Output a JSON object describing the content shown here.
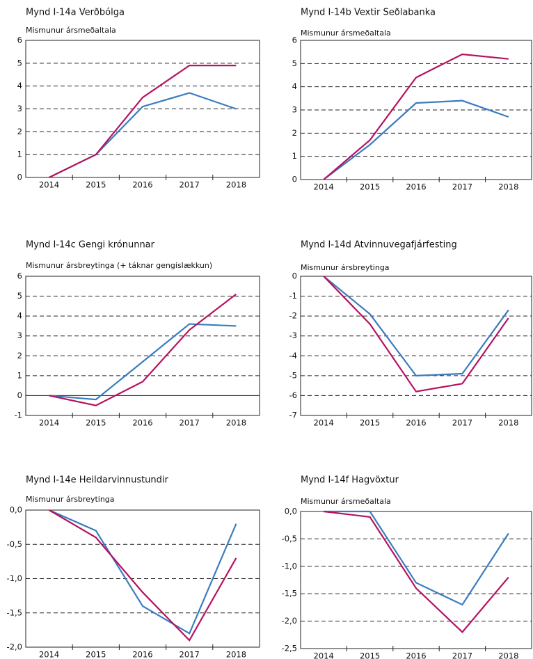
{
  "chart_data": [
    {
      "type": "line",
      "title": "Mynd I-14a Verðbólga",
      "subtitle": "Mismunur ársmeðaltala",
      "categories": [
        "2014",
        "2015",
        "2016",
        "2017",
        "2018"
      ],
      "series": [
        {
          "color": "#3a7cc0",
          "values": [
            0,
            1,
            3.1,
            3.7,
            3.0
          ]
        },
        {
          "color": "#b5125f",
          "values": [
            0,
            1,
            3.5,
            4.9,
            4.9
          ]
        }
      ],
      "ylim": [
        0,
        6
      ],
      "yticks": [
        0,
        1,
        2,
        3,
        4,
        5,
        6
      ],
      "grid": true
    },
    {
      "type": "line",
      "title": "Mynd I-14b Vextir Seðlabanka",
      "subtitle": "Mismunur ársmeðaltala",
      "categories": [
        "2014",
        "2015",
        "2016",
        "2017",
        "2018"
      ],
      "series": [
        {
          "color": "#3a7cc0",
          "values": [
            0,
            1.5,
            3.3,
            3.4,
            2.7
          ]
        },
        {
          "color": "#b5125f",
          "values": [
            0,
            1.7,
            4.4,
            5.4,
            5.2
          ]
        }
      ],
      "ylim": [
        0,
        6
      ],
      "yticks": [
        0,
        1,
        2,
        3,
        4,
        5,
        6
      ],
      "grid": true
    },
    {
      "type": "line",
      "title": "Mynd I-14c Gengi krónunnar",
      "subtitle": "Mismunur ársbreytinga (+ táknar gengislækkun)",
      "categories": [
        "2014",
        "2015",
        "2016",
        "2017",
        "2018"
      ],
      "series": [
        {
          "color": "#3a7cc0",
          "values": [
            0,
            -0.2,
            1.7,
            3.6,
            3.5
          ]
        },
        {
          "color": "#b5125f",
          "values": [
            0,
            -0.5,
            0.7,
            3.3,
            5.1
          ]
        }
      ],
      "ylim": [
        -1,
        6
      ],
      "yticks": [
        -1,
        0,
        1,
        2,
        3,
        4,
        5,
        6
      ],
      "grid": true
    },
    {
      "type": "line",
      "title": "Mynd I-14d Atvinnuvegafjárfesting",
      "subtitle": "Mismunur ársbreytinga",
      "categories": [
        "2014",
        "2015",
        "2016",
        "2017",
        "2018"
      ],
      "series": [
        {
          "color": "#3a7cc0",
          "values": [
            0,
            -1.9,
            -5.0,
            -4.9,
            -1.7
          ]
        },
        {
          "color": "#b5125f",
          "values": [
            0,
            -2.4,
            -5.8,
            -5.4,
            -2.1
          ]
        }
      ],
      "ylim": [
        -7,
        0
      ],
      "yticks": [
        -7,
        -6,
        -5,
        -4,
        -3,
        -2,
        -1,
        0
      ],
      "grid": true
    },
    {
      "type": "line",
      "title": "Mynd I-14e Heildarvinnustundir",
      "subtitle": "Mismunur ársbreytinga",
      "categories": [
        "2014",
        "2015",
        "2016",
        "2017",
        "2018"
      ],
      "series": [
        {
          "color": "#3a7cc0",
          "values": [
            0,
            -0.3,
            -1.4,
            -1.8,
            -0.2
          ]
        },
        {
          "color": "#b5125f",
          "values": [
            0,
            -0.4,
            -1.2,
            -1.9,
            -0.7
          ]
        }
      ],
      "ylim": [
        -2,
        0
      ],
      "yticks": [
        {
          "value": -2,
          "label": "-2,0"
        },
        {
          "value": -1.5,
          "label": "-1,5"
        },
        {
          "value": -1,
          "label": "-1,0"
        },
        {
          "value": -0.5,
          "label": "-0,5"
        },
        {
          "value": 0,
          "label": "0,0"
        }
      ],
      "grid": true
    },
    {
      "type": "line",
      "title": "Mynd I-14f Hagvöxtur",
      "subtitle": "Mismunur ársmeðaltala",
      "categories": [
        "2014",
        "2015",
        "2016",
        "2017",
        "2018"
      ],
      "series": [
        {
          "color": "#3a7cc0",
          "values": [
            0,
            0,
            -1.3,
            -1.7,
            -0.4
          ]
        },
        {
          "color": "#b5125f",
          "values": [
            0,
            -0.1,
            -1.4,
            -2.2,
            -1.2
          ]
        }
      ],
      "ylim": [
        -2.5,
        0
      ],
      "yticks": [
        {
          "value": -2.5,
          "label": "-2,5"
        },
        {
          "value": -2,
          "label": "-2,0"
        },
        {
          "value": -1.5,
          "label": "-1,5"
        },
        {
          "value": -1,
          "label": "-1,0"
        },
        {
          "value": -0.5,
          "label": "-0,5"
        },
        {
          "value": 0,
          "label": "0,0"
        }
      ],
      "grid": true
    }
  ]
}
